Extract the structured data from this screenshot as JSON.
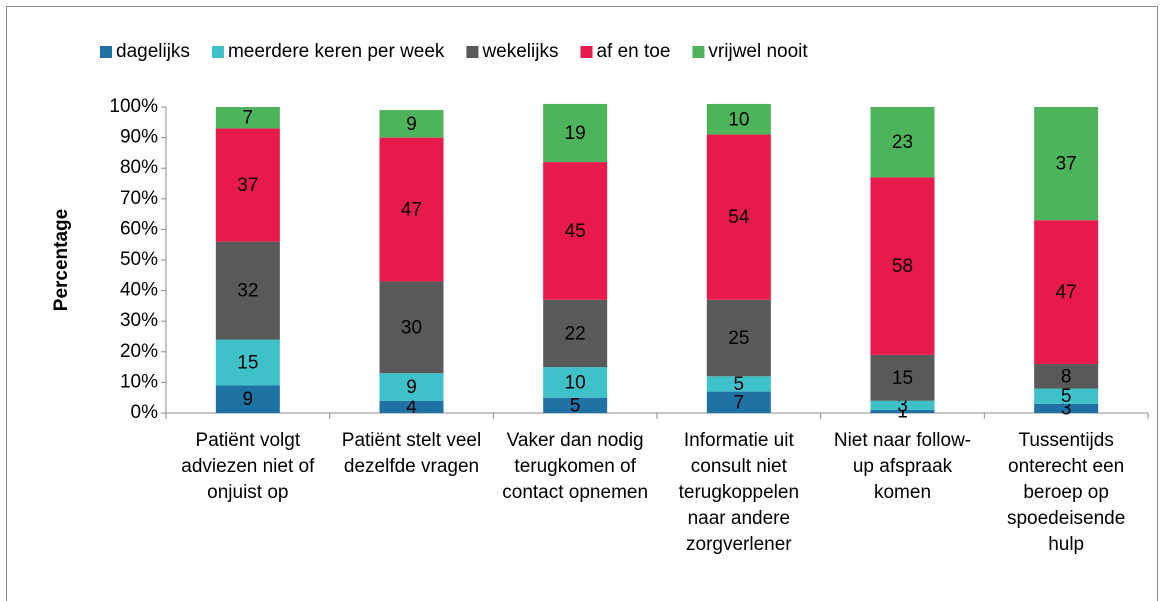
{
  "chart_data": {
    "type": "stacked_bar",
    "y_label": "Percentage",
    "categories": [
      "Patiënt volgt adviezen niet of onjuist op",
      "Patiënt stelt veel dezelfde vragen",
      "Vaker dan nodig terugkomen of contact opnemen",
      "Informatie uit consult niet terugkoppelen naar andere zorgverlener",
      "Niet naar follow-up afspraak komen",
      "Tussentijds onterecht een beroep op spoedeisende hulp"
    ],
    "series": [
      {
        "name": "dagelijks",
        "color": "#1f73a4",
        "values": [
          9,
          4,
          5,
          7,
          1,
          3
        ]
      },
      {
        "name": "meerdere keren per week",
        "color": "#3fc1c9",
        "values": [
          15,
          9,
          10,
          5,
          3,
          5
        ]
      },
      {
        "name": "wekelijks",
        "color": "#595959",
        "values": [
          32,
          30,
          22,
          25,
          15,
          8
        ]
      },
      {
        "name": "af en toe",
        "color": "#e8194b",
        "values": [
          37,
          47,
          45,
          54,
          58,
          47
        ]
      },
      {
        "name": "vrijwel nooit",
        "color": "#4db45c",
        "values": [
          7,
          9,
          19,
          10,
          23,
          37
        ]
      }
    ],
    "ylim": [
      0,
      100
    ],
    "yticks": [
      {
        "value": 0,
        "label": "0%"
      },
      {
        "value": 10,
        "label": "10%"
      },
      {
        "value": 20,
        "label": "20%"
      },
      {
        "value": 30,
        "label": "30%"
      },
      {
        "value": 40,
        "label": "40%"
      },
      {
        "value": 50,
        "label": "50%"
      },
      {
        "value": 60,
        "label": "60%"
      },
      {
        "value": 70,
        "label": "70%"
      },
      {
        "value": 80,
        "label": "80%"
      },
      {
        "value": 90,
        "label": "90%"
      },
      {
        "value": 100,
        "label": "100%"
      }
    ],
    "legend": "top"
  }
}
